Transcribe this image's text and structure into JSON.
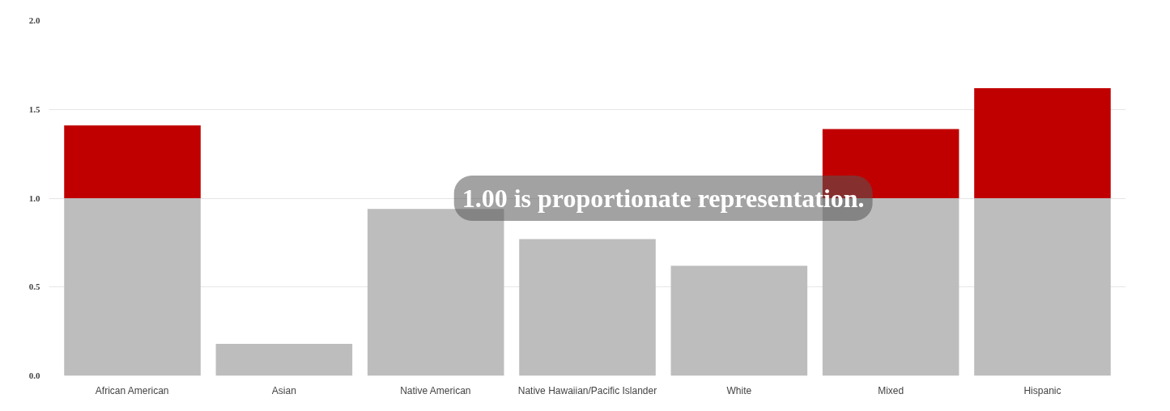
{
  "chart_data": {
    "type": "bar",
    "stacked": true,
    "categories": [
      "African American",
      "Asian",
      "Native American",
      "Native Hawaiian/Pacific Islander",
      "White",
      "Mixed",
      "Hispanic"
    ],
    "series": [
      {
        "color": "#bdbdbd",
        "values": [
          1.0,
          0.18,
          0.94,
          0.77,
          0.62,
          1.0,
          1.0
        ]
      },
      {
        "color": "#c00000",
        "values": [
          0.41,
          null,
          null,
          null,
          null,
          0.39,
          0.62
        ]
      }
    ],
    "ylim": [
      0,
      2.0
    ],
    "yticks": [
      {
        "value": 0,
        "label": "0.0"
      },
      {
        "value": 0.5,
        "label": "0.5"
      },
      {
        "value": 1.0,
        "label": "1.0"
      },
      {
        "value": 1.5,
        "label": "1.5"
      },
      {
        "value": 2.0,
        "label": "2.0"
      }
    ],
    "grid": "y",
    "annotations": [
      "1.00 is proportionate representation."
    ]
  }
}
